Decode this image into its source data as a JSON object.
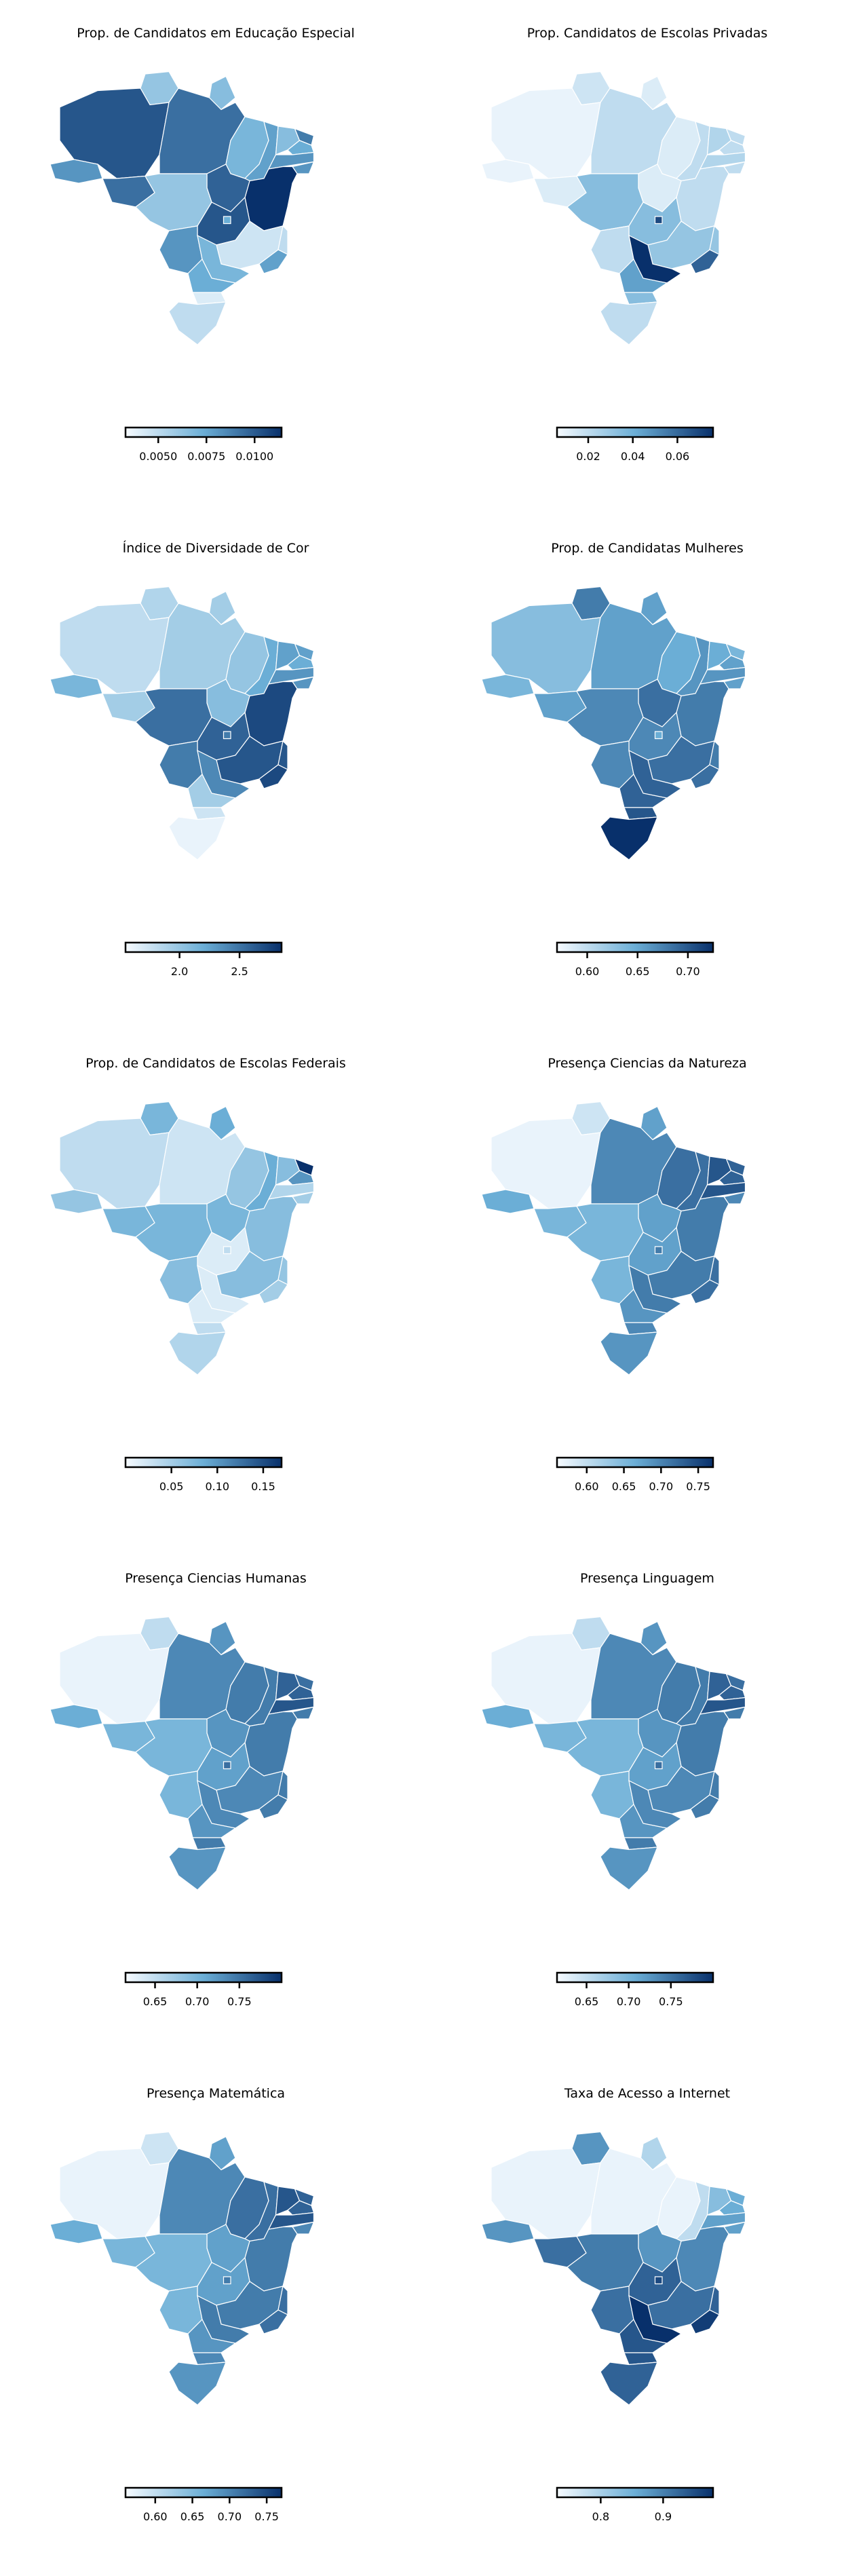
{
  "panels": [
    {
      "title": "Prop. de Candidatos em Educação Especial",
      "colorbar": {
        "min": 0.0033,
        "max": 0.0114,
        "ticks": [
          "0.0050",
          "0.0075",
          "0.0100"
        ],
        "tick_values": [
          0.005,
          0.0075,
          0.01
        ]
      },
      "regions": {
        "AC": 0.6,
        "AM": 0.85,
        "RR": 0.35,
        "PA": 0.75,
        "AP": 0.4,
        "MA": 0.45,
        "PI": 0.55,
        "CE": 0.4,
        "RN": 0.7,
        "PB": 0.5,
        "PE": 0.6,
        "AL": 0.6,
        "SE": 0.95,
        "BA": 1.0,
        "TO": 0.8,
        "RO": 0.75,
        "MT": 0.35,
        "GO": 0.85,
        "DF": 0.5,
        "MS": 0.6,
        "MG": 0.15,
        "ES": 0.2,
        "RJ": 0.55,
        "SP": 0.45,
        "PR": 0.5,
        "SC": 0.1,
        "RS": 0.2
      }
    },
    {
      "title": "Prop. Candidatos de Escolas Privadas",
      "colorbar": {
        "min": 0.006,
        "max": 0.076,
        "ticks": [
          "0.02",
          "0.04",
          "0.06"
        ],
        "tick_values": [
          0.02,
          0.04,
          0.06
        ]
      },
      "regions": {
        "AC": 0.05,
        "AM": 0.05,
        "RR": 0.15,
        "PA": 0.2,
        "AP": 0.1,
        "MA": 0.1,
        "PI": 0.2,
        "CE": 0.25,
        "RN": 0.2,
        "PB": 0.2,
        "PE": 0.25,
        "AL": 0.2,
        "SE": 0.2,
        "BA": 0.2,
        "TO": 0.1,
        "RO": 0.1,
        "MT": 0.4,
        "GO": 0.4,
        "DF": 0.9,
        "MS": 0.2,
        "MG": 0.35,
        "ES": 0.35,
        "RJ": 0.8,
        "SP": 1.0,
        "PR": 0.55,
        "SC": 0.4,
        "RS": 0.2
      }
    },
    {
      "title": "Índice de Diversidade de Cor",
      "colorbar": {
        "min": 1.55,
        "max": 2.85,
        "ticks": [
          "2.0",
          "2.5"
        ],
        "tick_values": [
          2.0,
          2.5
        ]
      },
      "regions": {
        "AC": 0.45,
        "AM": 0.2,
        "RR": 0.25,
        "PA": 0.3,
        "AP": 0.3,
        "MA": 0.35,
        "PI": 0.5,
        "CE": 0.55,
        "RN": 0.55,
        "PB": 0.5,
        "PE": 0.6,
        "AL": 0.6,
        "SE": 0.7,
        "BA": 0.9,
        "TO": 0.4,
        "RO": 0.3,
        "MT": 0.75,
        "GO": 0.8,
        "DF": 0.7,
        "MS": 0.7,
        "MG": 0.85,
        "ES": 0.85,
        "RJ": 0.9,
        "SP": 0.65,
        "PR": 0.3,
        "SC": 0.15,
        "RS": 0.05
      }
    },
    {
      "title": "Prop. de Candidatas Mulheres",
      "colorbar": {
        "min": 0.57,
        "max": 0.725,
        "ticks": [
          "0.60",
          "0.65",
          "0.70"
        ],
        "tick_values": [
          0.6,
          0.65,
          0.7
        ]
      },
      "regions": {
        "AC": 0.45,
        "AM": 0.4,
        "RR": 0.7,
        "PA": 0.55,
        "AP": 0.55,
        "MA": 0.5,
        "PI": 0.6,
        "CE": 0.5,
        "RN": 0.45,
        "PB": 0.55,
        "PE": 0.6,
        "AL": 0.55,
        "SE": 0.55,
        "BA": 0.7,
        "TO": 0.75,
        "RO": 0.55,
        "MT": 0.65,
        "GO": 0.65,
        "DF": 0.5,
        "MS": 0.65,
        "MG": 0.75,
        "ES": 0.7,
        "RJ": 0.75,
        "SP": 0.8,
        "PR": 0.8,
        "SC": 0.85,
        "RS": 1.0
      }
    },
    {
      "title": "Prop. de Candidatos de Escolas Federais",
      "colorbar": {
        "min": 0.0,
        "max": 0.17,
        "ticks": [
          "0.05",
          "0.10",
          "0.15"
        ],
        "tick_values": [
          0.05,
          0.1,
          0.15
        ]
      },
      "regions": {
        "AC": 0.35,
        "AM": 0.2,
        "RR": 0.45,
        "PA": 0.15,
        "AP": 0.5,
        "MA": 0.35,
        "PI": 0.5,
        "CE": 0.4,
        "RN": 1.0,
        "PB": 0.6,
        "PE": 0.25,
        "AL": 0.3,
        "SE": 0.35,
        "BA": 0.4,
        "TO": 0.45,
        "RO": 0.45,
        "MT": 0.45,
        "GO": 0.1,
        "DF": 0.2,
        "MS": 0.4,
        "MG": 0.4,
        "ES": 0.35,
        "RJ": 0.3,
        "SP": 0.1,
        "PR": 0.1,
        "SC": 0.2,
        "RS": 0.25
      }
    },
    {
      "title": "Presença Ciencias da Natureza",
      "colorbar": {
        "min": 0.56,
        "max": 0.77,
        "ticks": [
          "0.60",
          "0.65",
          "0.70",
          "0.75"
        ],
        "tick_values": [
          0.6,
          0.65,
          0.7,
          0.75
        ]
      },
      "regions": {
        "AC": 0.5,
        "AM": 0.05,
        "RR": 0.15,
        "PA": 0.65,
        "AP": 0.55,
        "MA": 0.75,
        "PI": 0.75,
        "CE": 0.85,
        "RN": 0.8,
        "PB": 0.8,
        "PE": 0.85,
        "AL": 0.65,
        "SE": 0.75,
        "BA": 0.7,
        "TO": 0.55,
        "RO": 0.45,
        "MT": 0.45,
        "GO": 0.55,
        "DF": 0.7,
        "MS": 0.45,
        "MG": 0.7,
        "ES": 0.75,
        "RJ": 0.75,
        "SP": 0.7,
        "PR": 0.6,
        "SC": 0.65,
        "RS": 0.6
      }
    },
    {
      "title": "Presença Ciencias Humanas",
      "colorbar": {
        "min": 0.615,
        "max": 0.8,
        "ticks": [
          "0.65",
          "0.70",
          "0.75"
        ],
        "tick_values": [
          0.65,
          0.7,
          0.75
        ]
      },
      "regions": {
        "AC": 0.5,
        "AM": 0.05,
        "RR": 0.2,
        "PA": 0.65,
        "AP": 0.6,
        "MA": 0.7,
        "PI": 0.7,
        "CE": 0.8,
        "RN": 0.75,
        "PB": 0.8,
        "PE": 0.85,
        "AL": 0.7,
        "SE": 0.75,
        "BA": 0.7,
        "TO": 0.6,
        "RO": 0.45,
        "MT": 0.45,
        "GO": 0.55,
        "DF": 0.75,
        "MS": 0.45,
        "MG": 0.65,
        "ES": 0.7,
        "RJ": 0.7,
        "SP": 0.65,
        "PR": 0.6,
        "SC": 0.7,
        "RS": 0.6
      }
    },
    {
      "title": "Presença Linguagem",
      "colorbar": {
        "min": 0.615,
        "max": 0.8,
        "ticks": [
          "0.65",
          "0.70",
          "0.75"
        ],
        "tick_values": [
          0.65,
          0.7,
          0.75
        ]
      },
      "regions": {
        "AC": 0.5,
        "AM": 0.05,
        "RR": 0.2,
        "PA": 0.65,
        "AP": 0.6,
        "MA": 0.7,
        "PI": 0.7,
        "CE": 0.8,
        "RN": 0.75,
        "PB": 0.8,
        "PE": 0.85,
        "AL": 0.7,
        "SE": 0.75,
        "BA": 0.7,
        "TO": 0.6,
        "RO": 0.45,
        "MT": 0.45,
        "GO": 0.55,
        "DF": 0.75,
        "MS": 0.45,
        "MG": 0.65,
        "ES": 0.7,
        "RJ": 0.7,
        "SP": 0.65,
        "PR": 0.6,
        "SC": 0.7,
        "RS": 0.6
      }
    },
    {
      "title": "Presença Matemática",
      "colorbar": {
        "min": 0.56,
        "max": 0.77,
        "ticks": [
          "0.60",
          "0.65",
          "0.70",
          "0.75"
        ],
        "tick_values": [
          0.6,
          0.65,
          0.7,
          0.75
        ]
      },
      "regions": {
        "AC": 0.5,
        "AM": 0.05,
        "RR": 0.15,
        "PA": 0.65,
        "AP": 0.55,
        "MA": 0.75,
        "PI": 0.75,
        "CE": 0.85,
        "RN": 0.8,
        "PB": 0.8,
        "PE": 0.85,
        "AL": 0.65,
        "SE": 0.75,
        "BA": 0.7,
        "TO": 0.55,
        "RO": 0.45,
        "MT": 0.45,
        "GO": 0.55,
        "DF": 0.7,
        "MS": 0.45,
        "MG": 0.7,
        "ES": 0.75,
        "RJ": 0.75,
        "SP": 0.7,
        "PR": 0.6,
        "SC": 0.65,
        "RS": 0.6
      }
    },
    {
      "title": "Taxa de Acesso a Internet",
      "colorbar": {
        "min": 0.73,
        "max": 0.98,
        "ticks": [
          "0.8",
          "0.9"
        ],
        "tick_values": [
          0.8,
          0.9
        ]
      },
      "regions": {
        "AC": 0.6,
        "AM": 0.05,
        "RR": 0.6,
        "PA": 0.05,
        "AP": 0.25,
        "MA": 0.05,
        "PI": 0.2,
        "CE": 0.4,
        "RN": 0.5,
        "PB": 0.5,
        "PE": 0.55,
        "AL": 0.55,
        "SE": 0.6,
        "BA": 0.65,
        "TO": 0.6,
        "RO": 0.75,
        "MT": 0.7,
        "GO": 0.8,
        "DF": 0.9,
        "MS": 0.75,
        "MG": 0.75,
        "ES": 0.8,
        "RJ": 0.95,
        "SP": 1.0,
        "PR": 0.85,
        "SC": 0.85,
        "RS": 0.8
      }
    }
  ],
  "colors": {
    "low": "#f7fbff",
    "mid": "#6baed6",
    "high": "#08306b"
  }
}
